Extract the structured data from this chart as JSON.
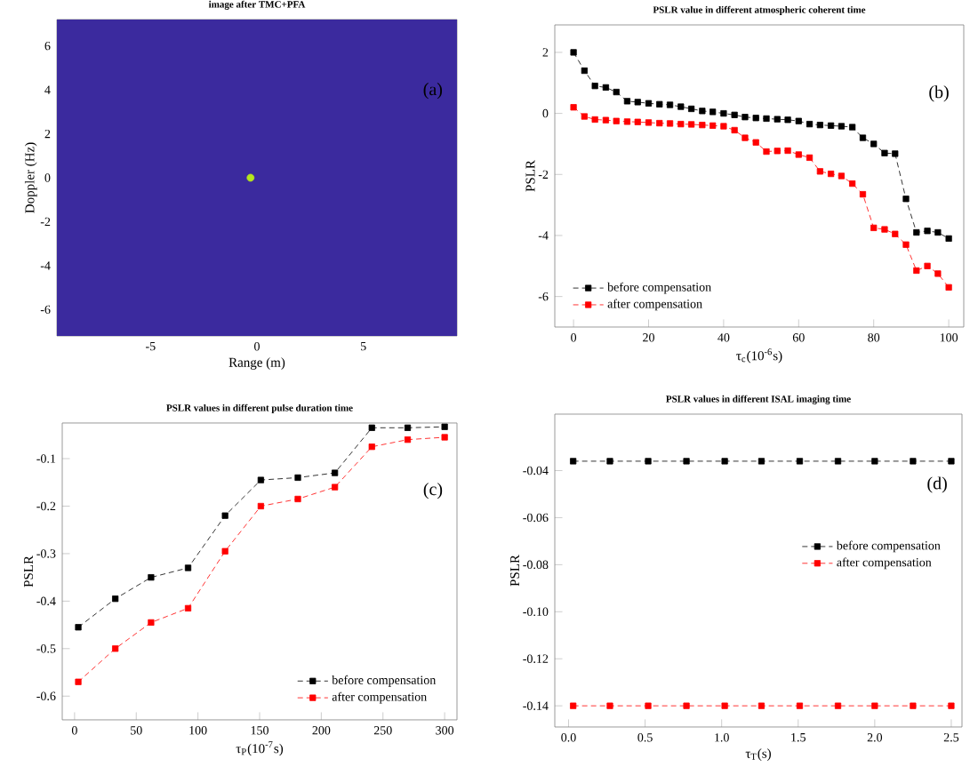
{
  "chart_data": [
    {
      "type": "scatter",
      "title": "image after TMC+PFA",
      "xlabel": "Range (m)",
      "ylabel": "Doppler (Hz)",
      "x": [
        -0.3
      ],
      "series": [
        {
          "color": "#b5e61d",
          "values": [
            0
          ]
        }
      ],
      "xlim": [
        -9.4,
        9.4
      ],
      "ylim": [
        -7.2,
        7.2
      ],
      "xticks": [
        -5,
        0,
        5
      ],
      "yticks": [
        -6,
        -4,
        -2,
        0,
        2,
        4,
        6
      ],
      "marker": "circle",
      "annotations": [
        "(a)"
      ]
    },
    {
      "type": "line",
      "title": "PSLR value in different atmospheric coherent time",
      "xlabel": "τ$_{c}$(10$^{-6}$s)",
      "ylabel": "PSLR",
      "x": [
        0,
        2.9,
        5.7,
        8.6,
        11.4,
        14.3,
        17.1,
        20,
        22.9,
        25.7,
        28.6,
        31.4,
        34.3,
        37.1,
        40,
        42.9,
        45.7,
        48.6,
        51.4,
        54.3,
        57.1,
        60,
        62.9,
        65.7,
        68.6,
        71.4,
        74.3,
        77.1,
        80,
        82.9,
        85.7,
        88.6,
        91.4,
        94.3,
        97.1,
        100
      ],
      "series": [
        {
          "name": "before compensation",
          "color": "#000000",
          "values": [
            2.0,
            1.4,
            0.9,
            0.85,
            0.7,
            0.4,
            0.37,
            0.33,
            0.3,
            0.28,
            0.22,
            0.15,
            0.08,
            0.05,
            0.0,
            -0.05,
            -0.12,
            -0.15,
            -0.17,
            -0.19,
            -0.21,
            -0.25,
            -0.35,
            -0.38,
            -0.4,
            -0.42,
            -0.45,
            -0.8,
            -1.0,
            -1.3,
            -1.32,
            -2.8,
            -3.9,
            -3.85,
            -3.9,
            -4.1
          ]
        },
        {
          "name": "after compensation",
          "color": "#ff0000",
          "values": [
            0.2,
            -0.1,
            -0.2,
            -0.22,
            -0.25,
            -0.27,
            -0.28,
            -0.3,
            -0.32,
            -0.33,
            -0.35,
            -0.36,
            -0.38,
            -0.4,
            -0.42,
            -0.55,
            -0.8,
            -0.95,
            -1.25,
            -1.23,
            -1.22,
            -1.35,
            -1.45,
            -1.9,
            -1.98,
            -2.05,
            -2.3,
            -2.65,
            -3.75,
            -3.8,
            -3.95,
            -4.3,
            -5.15,
            -5.0,
            -5.25,
            -5.7
          ]
        }
      ],
      "xlim": [
        -5,
        104
      ],
      "ylim": [
        -7,
        2.9
      ],
      "xticks": [
        0,
        20,
        40,
        60,
        80,
        100
      ],
      "yticks": [
        -6,
        -4,
        -2,
        0,
        2
      ],
      "marker": "square",
      "line_style": "dashed",
      "legend": "bottom left",
      "annotations": [
        "(b)"
      ]
    },
    {
      "type": "line",
      "title": "PSLR values in different pulse duration time",
      "xlabel": "τ$_{P}$(10$^{-7}$s)",
      "ylabel": "PSLR",
      "x": [
        3,
        33,
        62,
        92,
        122,
        151,
        181,
        211,
        241,
        270,
        300
      ],
      "series": [
        {
          "name": "before compensation",
          "color": "#000000",
          "values": [
            -0.455,
            -0.395,
            -0.35,
            -0.33,
            -0.22,
            -0.145,
            -0.14,
            -0.13,
            -0.035,
            -0.035,
            -0.033
          ]
        },
        {
          "name": "after compensation",
          "color": "#ff0000",
          "values": [
            -0.57,
            -0.5,
            -0.445,
            -0.415,
            -0.295,
            -0.2,
            -0.185,
            -0.16,
            -0.075,
            -0.06,
            -0.055
          ]
        }
      ],
      "xlim": [
        -10,
        310
      ],
      "ylim": [
        -0.65,
        -0.025
      ],
      "xticks": [
        0,
        50,
        100,
        150,
        200,
        250,
        300
      ],
      "yticks": [
        -0.6,
        -0.5,
        -0.4,
        -0.3,
        -0.2,
        -0.1
      ],
      "marker": "square",
      "line_style": "dashed",
      "legend": "bottom right",
      "annotations": [
        "(c)"
      ]
    },
    {
      "type": "line",
      "title": "PSLR values in different ISAL imaging time",
      "xlabel": "τ$_{T}$(s)",
      "ylabel": "PSLR",
      "x": [
        0.03,
        0.27,
        0.52,
        0.77,
        1.02,
        1.26,
        1.51,
        1.76,
        2.0,
        2.25,
        2.5
      ],
      "series": [
        {
          "name": "before compensation",
          "color": "#000000",
          "values": [
            -0.036,
            -0.036,
            -0.036,
            -0.036,
            -0.036,
            -0.036,
            -0.036,
            -0.036,
            -0.036,
            -0.036,
            -0.036
          ]
        },
        {
          "name": "after compensation",
          "color": "#ff0000",
          "values": [
            -0.14,
            -0.14,
            -0.14,
            -0.14,
            -0.14,
            -0.14,
            -0.14,
            -0.14,
            -0.14,
            -0.14,
            -0.14
          ]
        }
      ],
      "xlim": [
        -0.09,
        2.57
      ],
      "ylim": [
        -0.149,
        -0.016
      ],
      "xticks": [
        {
          "value": 0,
          "label": "0.0"
        },
        0.5,
        {
          "value": 1,
          "label": "1.0"
        },
        1.5,
        {
          "value": 2,
          "label": "2.0"
        },
        2.5
      ],
      "yticks": [
        -0.14,
        -0.12,
        {
          "value": -0.1,
          "label": "-0.10"
        },
        -0.08,
        -0.06,
        -0.04
      ],
      "marker": "square",
      "line_style": "dashed",
      "legend": "right",
      "annotations": [
        "(d)"
      ]
    }
  ]
}
